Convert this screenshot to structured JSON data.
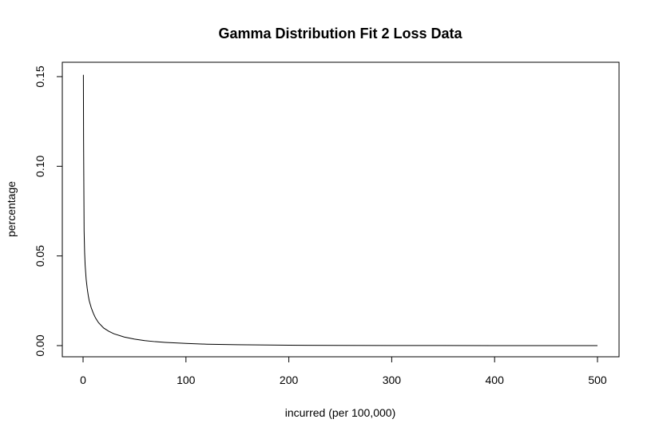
{
  "chart_data": {
    "type": "line",
    "title": "Gamma Distribution Fit 2 Loss Data",
    "xlabel": "incurred (per 100,000)",
    "ylabel": "percentage",
    "xlim": [
      0,
      500
    ],
    "ylim": [
      0,
      0.15
    ],
    "xticks": [
      0,
      100,
      200,
      300,
      400,
      500
    ],
    "xtick_labels": [
      "0",
      "100",
      "200",
      "300",
      "400",
      "500"
    ],
    "yticks": [
      0,
      0.05,
      0.1,
      0.15
    ],
    "ytick_labels": [
      "0.00",
      "0.05",
      "0.10",
      "0.15"
    ],
    "grid": false,
    "series": [
      {
        "color": "#000000",
        "x": [
          0.3,
          0.5,
          1,
          1.5,
          2,
          3,
          4,
          5,
          6,
          8,
          10,
          12,
          15,
          20,
          25,
          30,
          40,
          50,
          60,
          70,
          80,
          100,
          120,
          150,
          200,
          250,
          300,
          350,
          400,
          450,
          500
        ],
        "y": [
          0.151,
          0.115,
          0.064,
          0.052,
          0.045,
          0.037,
          0.032,
          0.028,
          0.025,
          0.021,
          0.018,
          0.0155,
          0.0128,
          0.0098,
          0.008,
          0.0066,
          0.0048,
          0.0036,
          0.0028,
          0.0022,
          0.0018,
          0.0012,
          0.0008,
          0.0005,
          0.0002,
          0.0001,
          5e-05,
          3e-05,
          1e-05,
          5e-06,
          2e-06
        ]
      }
    ]
  }
}
